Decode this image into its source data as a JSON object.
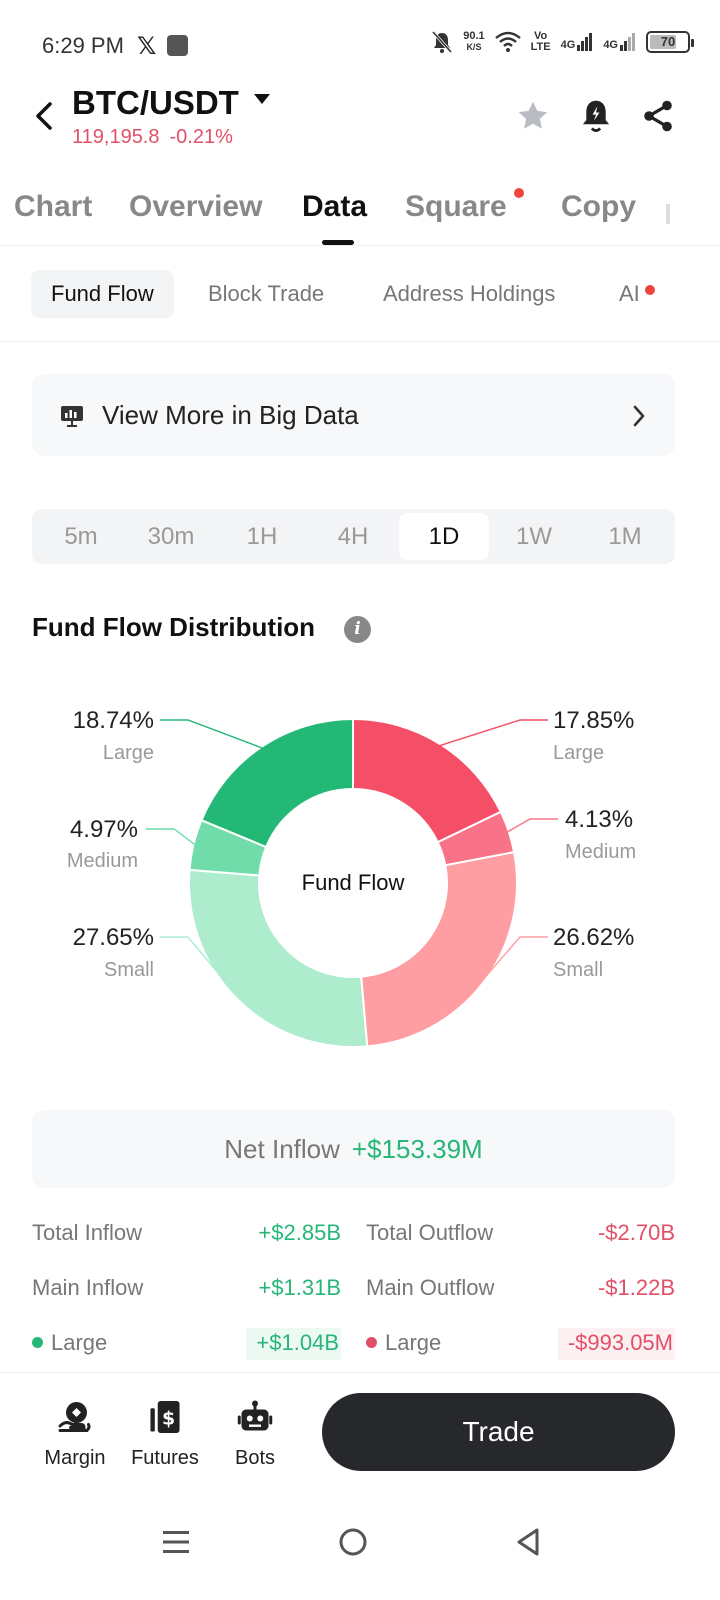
{
  "status": {
    "time": "6:29 PM",
    "net_speed_value": "90.1",
    "net_speed_unit": "K/S",
    "volte_top": "Vo",
    "volte_bottom": "LTE",
    "signal1": "4G",
    "signal2": "4G",
    "battery": "70"
  },
  "header": {
    "pair": "BTC/USDT",
    "price": "119,195.8",
    "change": "-0.21%",
    "icons": [
      "star-icon",
      "alarm-bell-icon",
      "share-icon"
    ]
  },
  "main_tabs": [
    {
      "label": "Chart"
    },
    {
      "label": "Overview"
    },
    {
      "label": "Data"
    },
    {
      "label": "Square"
    },
    {
      "label": "Copy"
    }
  ],
  "sub_tabs": [
    {
      "label": "Fund Flow"
    },
    {
      "label": "Block Trade"
    },
    {
      "label": "Address Holdings"
    },
    {
      "label": "AI"
    }
  ],
  "big_data": {
    "label": "View More in Big Data"
  },
  "time_ranges": [
    "5m",
    "30m",
    "1H",
    "4H",
    "1D",
    "1W",
    "1M"
  ],
  "selected_range": "1D",
  "section_title": "Fund Flow Distribution",
  "chart_data": {
    "type": "pie",
    "center_label": "Fund Flow",
    "slices": [
      {
        "side": "outflow",
        "label": "Large",
        "value": 17.85,
        "display": "17.85%",
        "color": "#f44f66"
      },
      {
        "side": "outflow",
        "label": "Medium",
        "value": 4.13,
        "display": "4.13%",
        "color": "#f87387"
      },
      {
        "side": "outflow",
        "label": "Small",
        "value": 26.62,
        "display": "26.62%",
        "color": "#ff9ea2"
      },
      {
        "side": "inflow",
        "label": "Small",
        "value": 27.65,
        "display": "27.65%",
        "color": "#aeecce"
      },
      {
        "side": "inflow",
        "label": "Medium",
        "value": 4.97,
        "display": "4.97%",
        "color": "#6fdcaa"
      },
      {
        "side": "inflow",
        "label": "Large",
        "value": 18.74,
        "display": "18.74%",
        "color": "#24b877"
      }
    ]
  },
  "net_inflow": {
    "label": "Net Inflow",
    "value": "+$153.39M"
  },
  "flows": {
    "total_inflow": {
      "label": "Total Inflow",
      "value": "+$2.85B"
    },
    "total_outflow": {
      "label": "Total Outflow",
      "value": "-$2.70B"
    },
    "main_inflow": {
      "label": "Main Inflow",
      "value": "+$1.31B"
    },
    "main_outflow": {
      "label": "Main Outflow",
      "value": "-$1.22B"
    },
    "large_inflow": {
      "label": "Large",
      "value": "+$1.04B"
    },
    "large_outflow": {
      "label": "Large",
      "value": "-$993.05M"
    }
  },
  "bottom_bar": {
    "margin": "Margin",
    "futures": "Futures",
    "bots": "Bots",
    "trade": "Trade"
  },
  "colors": {
    "positive": "#26b677",
    "negative": "#e25068"
  }
}
